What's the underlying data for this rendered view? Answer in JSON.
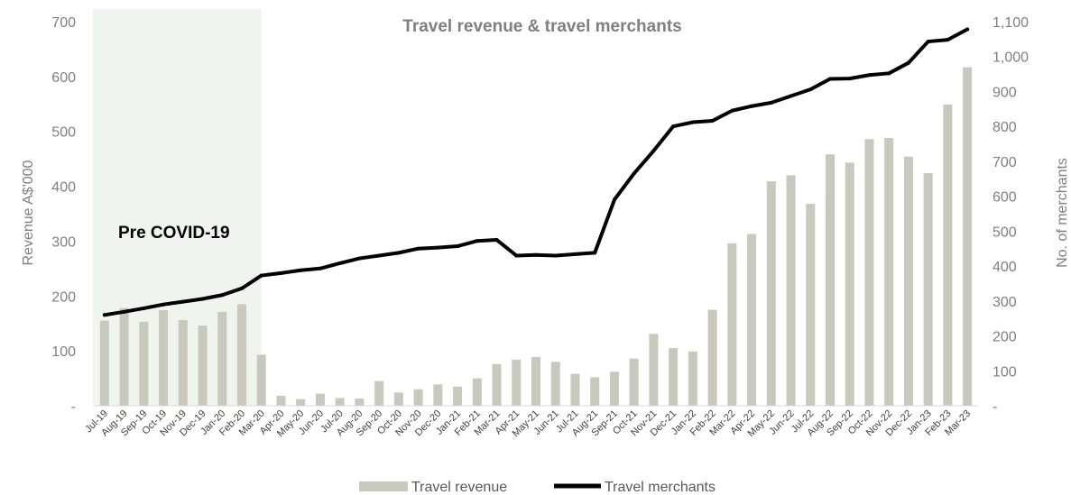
{
  "chart_data": {
    "type": "bar",
    "title": "Travel revenue & travel merchants",
    "ylabel": "Revenue A$'000",
    "y2label": "No. of merchants",
    "ylim": [
      0,
      700
    ],
    "y2lim": [
      0,
      1100
    ],
    "y_ticks": [
      "-",
      "100",
      "200",
      "300",
      "400",
      "500",
      "600",
      "700"
    ],
    "y2_ticks": [
      "-",
      "100",
      "200",
      "300",
      "400",
      "500",
      "600",
      "700",
      "800",
      "900",
      "1,000",
      "1,100"
    ],
    "grid": false,
    "legend_position": "bottom",
    "categories": [
      "Jul-19",
      "Aug-19",
      "Sep-19",
      "Oct-19",
      "Nov-19",
      "Dec-19",
      "Jan-20",
      "Feb-20",
      "Mar-20",
      "Apr-20",
      "May-20",
      "Jun-20",
      "Jul-20",
      "Aug-20",
      "Sep-20",
      "Oct-20",
      "Nov-20",
      "Dec-20",
      "Jan-21",
      "Feb-21",
      "Mar-21",
      "Apr-21",
      "May-21",
      "Jun-21",
      "Jul-21",
      "Aug-21",
      "Sep-21",
      "Oct-21",
      "Nov-21",
      "Dec-21",
      "Jan-22",
      "Feb-22",
      "Mar-22",
      "Apr-22",
      "May-22",
      "Jun-22",
      "Jul-22",
      "Aug-22",
      "Sep-22",
      "Oct-22",
      "Nov-22",
      "Dec-22",
      "Jan-23",
      "Feb-23",
      "Mar-23"
    ],
    "series": [
      {
        "name": "Travel revenue",
        "kind": "bar",
        "axis": "left",
        "color": "#c8c8bd",
        "values": [
          155,
          178,
          153,
          174,
          156,
          146,
          171,
          185,
          93,
          18,
          12,
          22,
          14,
          13,
          45,
          24,
          30,
          39,
          35,
          50,
          76,
          84,
          89,
          80,
          58,
          52,
          62,
          86,
          131,
          105,
          99,
          175,
          296,
          313,
          409,
          420,
          368,
          458,
          443,
          486,
          488,
          454,
          424,
          549,
          617
        ]
      },
      {
        "name": "Travel merchants",
        "kind": "line",
        "axis": "right",
        "color": "#000000",
        "values": [
          260,
          269,
          279,
          290,
          298,
          306,
          317,
          336,
          373,
          380,
          388,
          393,
          408,
          422,
          430,
          438,
          450,
          453,
          457,
          472,
          475,
          430,
          432,
          430,
          434,
          438,
          590,
          665,
          730,
          800,
          812,
          816,
          845,
          858,
          868,
          887,
          906,
          936,
          937,
          947,
          952,
          982,
          1043,
          1048,
          1078
        ]
      }
    ],
    "annotations": [
      {
        "text": "Pre COVID-19",
        "span": [
          "Jul-19",
          "Mar-20"
        ],
        "shade_color": "#eff5ee"
      }
    ]
  }
}
